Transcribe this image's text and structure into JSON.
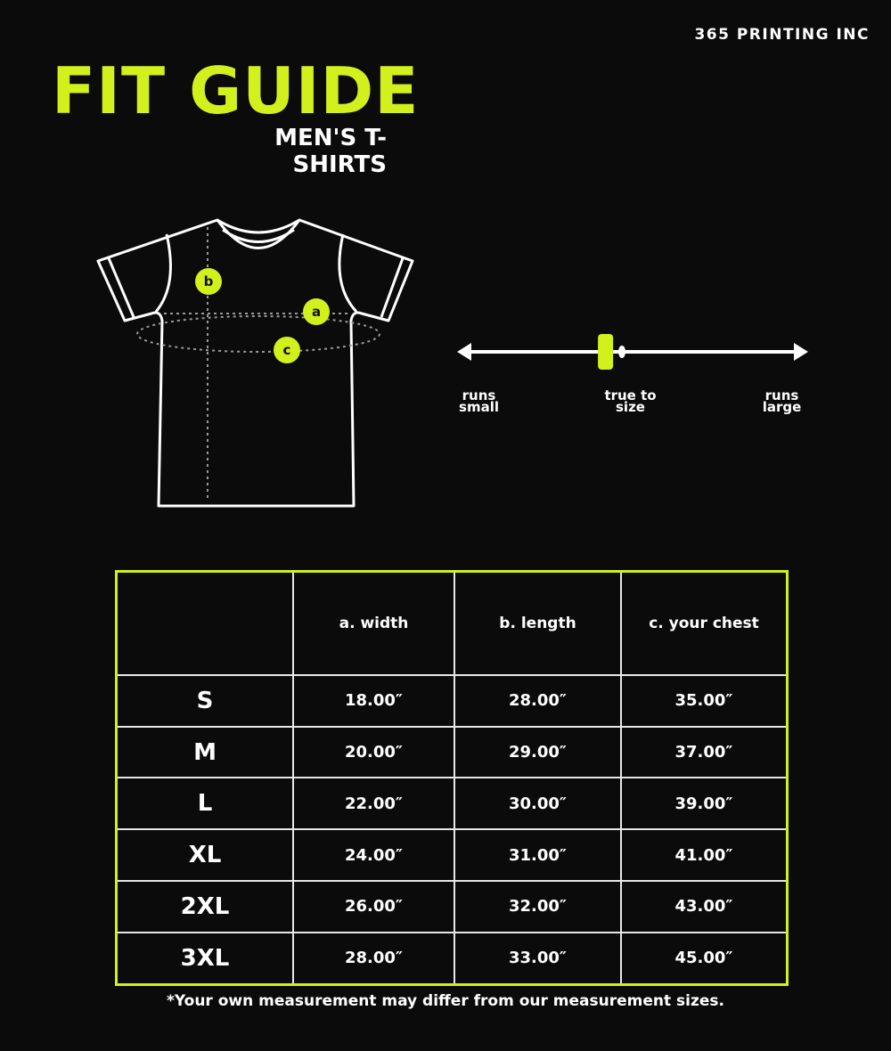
{
  "brand": "365 PRINTING INC",
  "title": "FIT GUIDE",
  "subtitle": "MEN'S T-SHIRTS",
  "colors": {
    "accent": "#d2f01c",
    "background": "#0b0b0b",
    "line": "#ffffff"
  },
  "diagram": {
    "markers": [
      "a",
      "b",
      "c"
    ]
  },
  "fit_scale": {
    "left_label": "runs small",
    "center_label": "true to size",
    "right_label": "runs large",
    "marker_position": 0.42
  },
  "table": {
    "headers": [
      "",
      "a. width",
      "b. length",
      "c. your chest"
    ],
    "rows": [
      [
        "S",
        "18.00″",
        "28.00″",
        "35.00″"
      ],
      [
        "M",
        "20.00″",
        "29.00″",
        "37.00″"
      ],
      [
        "L",
        "22.00″",
        "30.00″",
        "39.00″"
      ],
      [
        "XL",
        "24.00″",
        "31.00″",
        "41.00″"
      ],
      [
        "2XL",
        "26.00″",
        "32.00″",
        "43.00″"
      ],
      [
        "3XL",
        "28.00″",
        "33.00″",
        "45.00″"
      ]
    ]
  },
  "note": "*Your own measurement may differ from our measurement sizes."
}
